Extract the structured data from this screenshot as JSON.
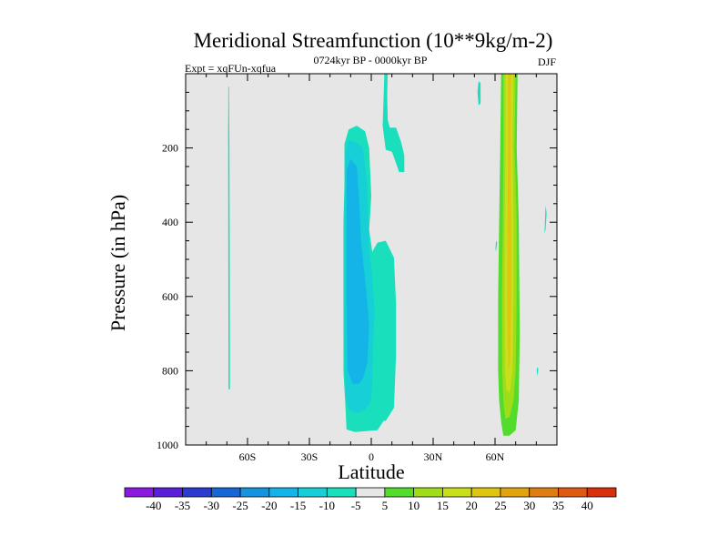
{
  "chart_data": {
    "type": "filled-contour",
    "title": "Meridional Streamfunction (10**9kg/m-2)",
    "subtitle_left": "Expt = xqFUn-xqfua",
    "subtitle_center": "0724kyr BP - 0000kyr BP",
    "subtitle_right": "DJF",
    "xlabel": "Latitude",
    "ylabel": "Pressure (in hPa)",
    "xlim": [
      -90,
      90
    ],
    "ylim": [
      0,
      1000
    ],
    "y_inverted": true,
    "background_color": "#e6e6e6",
    "xticks": [
      {
        "value": -60,
        "label": "60S"
      },
      {
        "value": -30,
        "label": "30S"
      },
      {
        "value": 0,
        "label": "0"
      },
      {
        "value": 30,
        "label": "30N"
      },
      {
        "value": 60,
        "label": "60N"
      }
    ],
    "yticks": [
      {
        "value": 200,
        "label": "200"
      },
      {
        "value": 400,
        "label": "400"
      },
      {
        "value": 600,
        "label": "600"
      },
      {
        "value": 800,
        "label": "800"
      },
      {
        "value": 1000,
        "label": "1000"
      }
    ],
    "colorbar": {
      "labels": [
        "-40",
        "-35",
        "-30",
        "-25",
        "-20",
        "-15",
        "-10",
        "-5",
        "5",
        "10",
        "15",
        "20",
        "25",
        "30",
        "35",
        "40"
      ],
      "colors": [
        "#8b1ae0",
        "#5a1fd8",
        "#2a3bd0",
        "#1766d6",
        "#1593e0",
        "#14b4e8",
        "#17cfd6",
        "#19dfbc",
        "#e6e6e6",
        "#52dc2c",
        "#9fdc1a",
        "#c8e01c",
        "#e0c412",
        "#e0a410",
        "#de7e12",
        "#de5a12",
        "#d9300c"
      ]
    },
    "regions": [
      {
        "level": "-5 to -10",
        "color": "#19dfbc",
        "points": [
          [
            -69,
            35
          ],
          [
            -68.8,
            180
          ],
          [
            -68.6,
            500
          ],
          [
            -68.5,
            850
          ],
          [
            -69.2,
            850
          ],
          [
            -69.3,
            500
          ],
          [
            -69.4,
            180
          ],
          [
            -69.3,
            35
          ]
        ]
      },
      {
        "level": "-5 to -10",
        "color": "#19dfbc",
        "points": [
          [
            -13,
            190
          ],
          [
            -11,
            150
          ],
          [
            -7,
            140
          ],
          [
            -3,
            155
          ],
          [
            -1,
            200
          ],
          [
            0,
            330
          ],
          [
            -1,
            420
          ],
          [
            0.5,
            480
          ],
          [
            3,
            455
          ],
          [
            7,
            450
          ],
          [
            11,
            495
          ],
          [
            12,
            620
          ],
          [
            12,
            760
          ],
          [
            11,
            900
          ],
          [
            7,
            935
          ],
          [
            6,
            935
          ],
          [
            3,
            960
          ],
          [
            -8,
            965
          ],
          [
            -12,
            958
          ],
          [
            -12.5,
            900
          ],
          [
            -13.5,
            800
          ],
          [
            -13.5,
            600
          ],
          [
            -13.5,
            400
          ],
          [
            -13,
            300
          ]
        ]
      },
      {
        "level": "-10 to -15",
        "color": "#17cfd6",
        "points": [
          [
            -12.5,
            210
          ],
          [
            -11,
            180
          ],
          [
            -7,
            185
          ],
          [
            -4,
            200
          ],
          [
            -2,
            300
          ],
          [
            -1.5,
            400
          ],
          [
            -1,
            480
          ],
          [
            0.5,
            540
          ],
          [
            1.5,
            640
          ],
          [
            1,
            720
          ],
          [
            0.5,
            820
          ],
          [
            0,
            880
          ],
          [
            -3,
            905
          ],
          [
            -7,
            915
          ],
          [
            -11,
            905
          ],
          [
            -12.5,
            860
          ],
          [
            -13,
            700
          ],
          [
            -13,
            500
          ],
          [
            -13,
            350
          ]
        ]
      },
      {
        "level": "-15 to -20",
        "color": "#14b4e8",
        "points": [
          [
            -12,
            260
          ],
          [
            -10,
            230
          ],
          [
            -7,
            250
          ],
          [
            -6,
            330
          ],
          [
            -5,
            450
          ],
          [
            -2.5,
            580
          ],
          [
            -1,
            680
          ],
          [
            -2,
            780
          ],
          [
            -4,
            820
          ],
          [
            -6,
            835
          ],
          [
            -9,
            835
          ],
          [
            -11.5,
            800
          ],
          [
            -12,
            600
          ],
          [
            -12,
            400
          ]
        ]
      },
      {
        "level": "-5 to -10",
        "color": "#19dfbc",
        "points": [
          [
            6.5,
            -20
          ],
          [
            8,
            -20
          ],
          [
            7.7,
            60
          ],
          [
            8,
            125
          ],
          [
            9,
            145
          ],
          [
            12,
            145
          ],
          [
            14.5,
            185
          ],
          [
            16,
            220
          ],
          [
            16,
            265
          ],
          [
            13.5,
            265
          ],
          [
            11,
            225
          ],
          [
            10,
            210
          ],
          [
            7,
            205
          ],
          [
            5.5,
            140
          ],
          [
            6,
            60
          ]
        ]
      },
      {
        "level": "-5 to -10",
        "color": "#19dfbc",
        "points": [
          [
            52,
            20
          ],
          [
            53,
            25
          ],
          [
            53,
            80
          ],
          [
            52,
            85
          ],
          [
            51.5,
            50
          ]
        ]
      },
      {
        "level": "-5 to -10",
        "color": "#19dfbc",
        "points": [
          [
            60.5,
            450
          ],
          [
            61,
            455
          ],
          [
            60.5,
            480
          ],
          [
            60.2,
            470
          ]
        ]
      },
      {
        "level": "-5 to -10",
        "color": "#19dfbc",
        "points": [
          [
            84.5,
            355
          ],
          [
            85,
            375
          ],
          [
            84.5,
            420
          ],
          [
            84,
            430
          ]
        ]
      },
      {
        "level": "-5 to -10",
        "color": "#19dfbc",
        "points": [
          [
            80.5,
            790
          ],
          [
            81,
            795
          ],
          [
            80.5,
            815
          ],
          [
            80.2,
            800
          ]
        ]
      },
      {
        "level": "5 to 10",
        "color": "#52dc2c",
        "points": [
          [
            63,
            -20
          ],
          [
            71,
            -20
          ],
          [
            70.5,
            200
          ],
          [
            71.5,
            400
          ],
          [
            72,
            700
          ],
          [
            71.5,
            880
          ],
          [
            70,
            960
          ],
          [
            67,
            975
          ],
          [
            64,
            975
          ],
          [
            63,
            940
          ],
          [
            62,
            880
          ],
          [
            61.5,
            800
          ],
          [
            61.5,
            600
          ],
          [
            62,
            400
          ],
          [
            62.5,
            200
          ]
        ]
      },
      {
        "level": "10 to 15",
        "color": "#9fdc1a",
        "points": [
          [
            64,
            -20
          ],
          [
            70,
            -20
          ],
          [
            69.5,
            200
          ],
          [
            70.5,
            400
          ],
          [
            70.5,
            600
          ],
          [
            70,
            800
          ],
          [
            69,
            880
          ],
          [
            67,
            925
          ],
          [
            65,
            930
          ],
          [
            64,
            880
          ],
          [
            63.5,
            800
          ],
          [
            63.3,
            600
          ],
          [
            63.8,
            400
          ],
          [
            64,
            200
          ]
        ]
      },
      {
        "level": "15 to 20",
        "color": "#c8e01c",
        "points": [
          [
            65,
            -20
          ],
          [
            69,
            -20
          ],
          [
            68.5,
            200
          ],
          [
            69,
            400
          ],
          [
            69,
            600
          ],
          [
            68.5,
            800
          ],
          [
            67,
            860
          ],
          [
            65.5,
            850
          ],
          [
            64.8,
            800
          ],
          [
            64.5,
            600
          ],
          [
            64.7,
            400
          ],
          [
            65,
            200
          ]
        ]
      },
      {
        "level": "20 to 25",
        "color": "#e0c412",
        "points": [
          [
            66.3,
            -20
          ],
          [
            67.8,
            -20
          ],
          [
            67.5,
            200
          ],
          [
            67.8,
            400
          ],
          [
            67.8,
            600
          ],
          [
            67.3,
            780
          ],
          [
            66.6,
            800
          ],
          [
            66.2,
            720
          ],
          [
            66,
            600
          ],
          [
            66.1,
            400
          ],
          [
            66.3,
            200
          ]
        ]
      }
    ]
  }
}
